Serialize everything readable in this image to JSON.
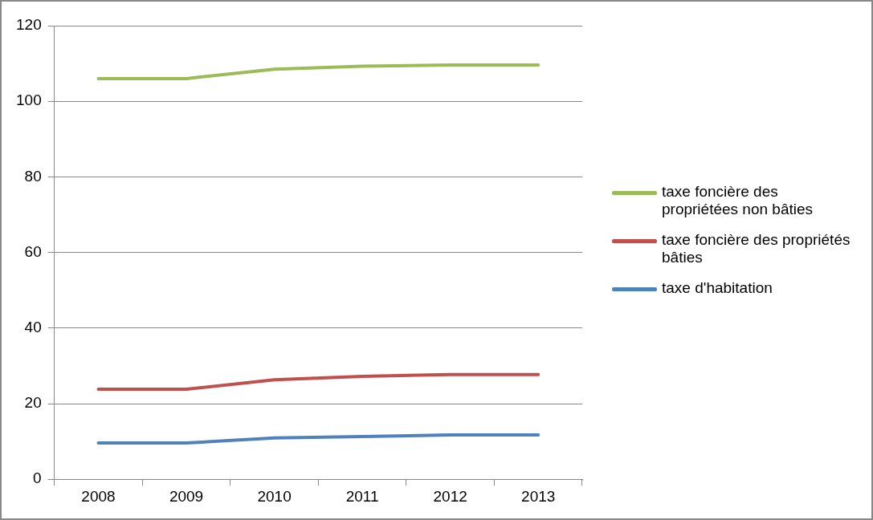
{
  "chart_data": {
    "type": "line",
    "categories": [
      "2008",
      "2009",
      "2010",
      "2011",
      "2012",
      "2013"
    ],
    "series": [
      {
        "name": "taxe foncière des propriétées non bâties",
        "color": "#9bbb59",
        "values": [
          106,
          106,
          108.5,
          109.3,
          109.6,
          109.6
        ]
      },
      {
        "name": "taxe foncière des propriétés bâties",
        "color": "#c0504d",
        "values": [
          23.8,
          23.8,
          26.3,
          27.2,
          27.7,
          27.7
        ]
      },
      {
        "name": "taxe d'habitation",
        "color": "#4f81bd",
        "values": [
          9.6,
          9.6,
          10.9,
          11.3,
          11.7,
          11.7
        ]
      }
    ],
    "ylim": [
      0,
      120
    ],
    "yticks": [
      0,
      20,
      40,
      60,
      80,
      100,
      120
    ],
    "grid": "y",
    "legend": "right",
    "marker": "none"
  }
}
